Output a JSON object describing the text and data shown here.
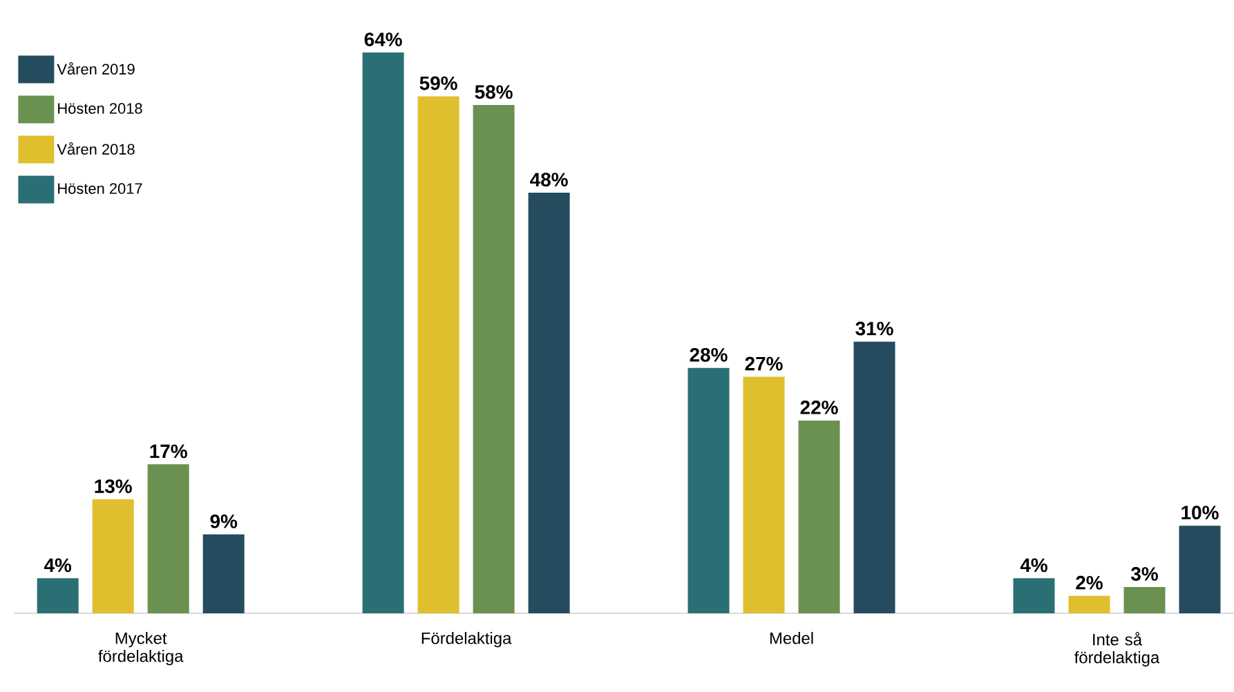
{
  "chart_data": {
    "type": "bar",
    "categories": [
      "Mycket fördelaktiga",
      "Fördelaktiga",
      "Medel",
      "Inte så fördelaktiga"
    ],
    "series": [
      {
        "name": "Hösten 2017",
        "color": "#2a6f73",
        "values": [
          4,
          64,
          28,
          4
        ],
        "value_labels": [
          "4%",
          "64%",
          "28%",
          "4%"
        ]
      },
      {
        "name": "Våren 2018",
        "color": "#e0bf2f",
        "values": [
          13,
          59,
          27,
          2
        ],
        "value_labels": [
          "13%",
          "59%",
          "27%",
          "2%"
        ]
      },
      {
        "name": "Hösten 2018",
        "color": "#6a9150",
        "values": [
          17,
          58,
          22,
          3
        ],
        "value_labels": [
          "17%",
          "58%",
          "22%",
          "3%"
        ]
      },
      {
        "name": "Våren 2019",
        "color": "#244c5e",
        "values": [
          9,
          48,
          31,
          10
        ],
        "value_labels": [
          "9%",
          "48%",
          "31%",
          "10%"
        ]
      }
    ],
    "legend": "top left"
  }
}
